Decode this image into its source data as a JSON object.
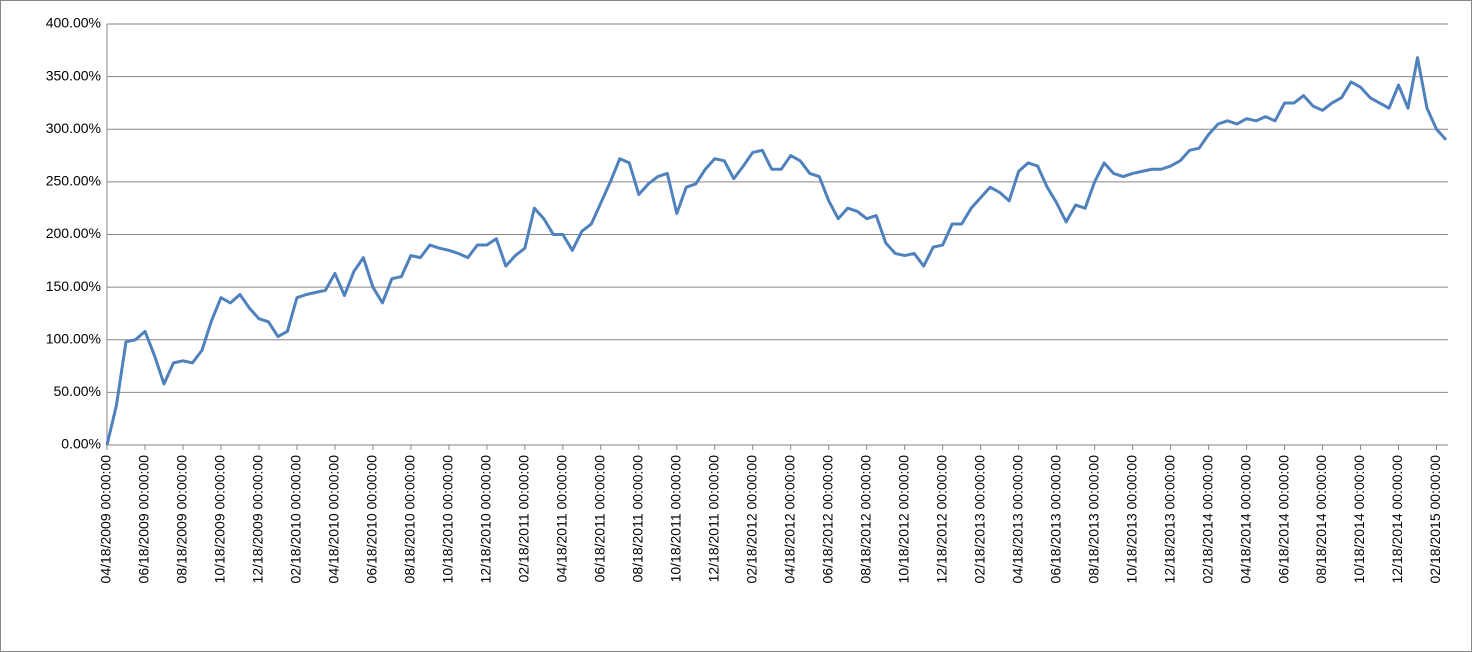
{
  "chart_data": {
    "type": "line",
    "categories": [
      "04/18/2009 00:00:00",
      null,
      null,
      null,
      "06/18/2009 00:00:00",
      null,
      null,
      null,
      "08/18/2009 00:00:00",
      null,
      null,
      null,
      "10/18/2009 00:00:00",
      null,
      null,
      null,
      "12/18/2009 00:00:00",
      null,
      null,
      null,
      "02/18/2010 00:00:00",
      null,
      null,
      null,
      "04/18/2010 00:00:00",
      null,
      null,
      null,
      "06/18/2010 00:00:00",
      null,
      null,
      null,
      "08/18/2010 00:00:00",
      null,
      null,
      null,
      "10/18/2010 00:00:00",
      null,
      null,
      null,
      "12/18/2010 00:00:00",
      null,
      null,
      null,
      "02/18/2011 00:00:00",
      null,
      null,
      null,
      "04/18/2011 00:00:00",
      null,
      null,
      null,
      "06/18/2011 00:00:00",
      null,
      null,
      null,
      "08/18/2011 00:00:00",
      null,
      null,
      null,
      "10/18/2011 00:00:00",
      null,
      null,
      null,
      "12/18/2011 00:00:00",
      null,
      null,
      null,
      "02/18/2012 00:00:00",
      null,
      null,
      null,
      "04/18/2012 00:00:00",
      null,
      null,
      null,
      "06/18/2012 00:00:00",
      null,
      null,
      null,
      "08/18/2012 00:00:00",
      null,
      null,
      null,
      "10/18/2012 00:00:00",
      null,
      null,
      null,
      "12/18/2012 00:00:00",
      null,
      null,
      null,
      "02/18/2013 00:00:00",
      null,
      null,
      null,
      "04/18/2013 00:00:00",
      null,
      null,
      null,
      "06/18/2013 00:00:00",
      null,
      null,
      null,
      "08/18/2013 00:00:00",
      null,
      null,
      null,
      "10/18/2013 00:00:00",
      null,
      null,
      null,
      "12/18/2013 00:00:00",
      null,
      null,
      null,
      "02/18/2014 00:00:00",
      null,
      null,
      null,
      "04/18/2014 00:00:00",
      null,
      null,
      null,
      "06/18/2014 00:00:00",
      null,
      null,
      null,
      "08/18/2014 00:00:00",
      null,
      null,
      null,
      "10/18/2014 00:00:00",
      null,
      null,
      null,
      "12/18/2014 00:00:00",
      null,
      null,
      null,
      "02/18/2015 00:00:00",
      null
    ],
    "values": [
      0,
      38,
      98,
      100,
      108,
      85,
      58,
      78,
      80,
      78,
      90,
      118,
      140,
      135,
      143,
      130,
      120,
      117,
      103,
      108,
      140,
      143,
      145,
      147,
      163,
      142,
      165,
      178,
      150,
      135,
      158,
      160,
      180,
      178,
      190,
      187,
      185,
      182,
      178,
      190,
      190,
      196,
      170,
      180,
      187,
      225,
      215,
      200,
      200,
      185,
      203,
      210,
      230,
      250,
      272,
      268,
      238,
      248,
      255,
      258,
      220,
      245,
      248,
      262,
      272,
      270,
      253,
      265,
      278,
      280,
      262,
      262,
      275,
      270,
      258,
      255,
      232,
      215,
      225,
      222,
      215,
      218,
      192,
      182,
      180,
      182,
      170,
      188,
      190,
      210,
      210,
      225,
      235,
      245,
      240,
      232,
      260,
      268,
      265,
      245,
      230,
      212,
      228,
      225,
      250,
      268,
      258,
      255,
      258,
      260,
      262,
      262,
      265,
      270,
      280,
      282,
      295,
      305,
      308,
      305,
      310,
      308,
      312,
      308,
      325,
      325,
      332,
      322,
      318,
      325,
      330,
      345,
      340,
      330,
      325,
      320,
      342,
      320,
      368,
      320,
      300,
      290
    ],
    "color": "#4f81bd",
    "ylim": [
      0,
      400
    ],
    "yticks": [
      {
        "value": 0,
        "label": "0.00%"
      },
      {
        "value": 50,
        "label": "50.00%"
      },
      {
        "value": 100,
        "label": "100.00%"
      },
      {
        "value": 150,
        "label": "150.00%"
      },
      {
        "value": 200,
        "label": "200.00%"
      },
      {
        "value": 250,
        "label": "250.00%"
      },
      {
        "value": 300,
        "label": "300.00%"
      },
      {
        "value": 350,
        "label": "350.00%"
      },
      {
        "value": 400,
        "label": "400.00%"
      }
    ],
    "grid": true
  }
}
